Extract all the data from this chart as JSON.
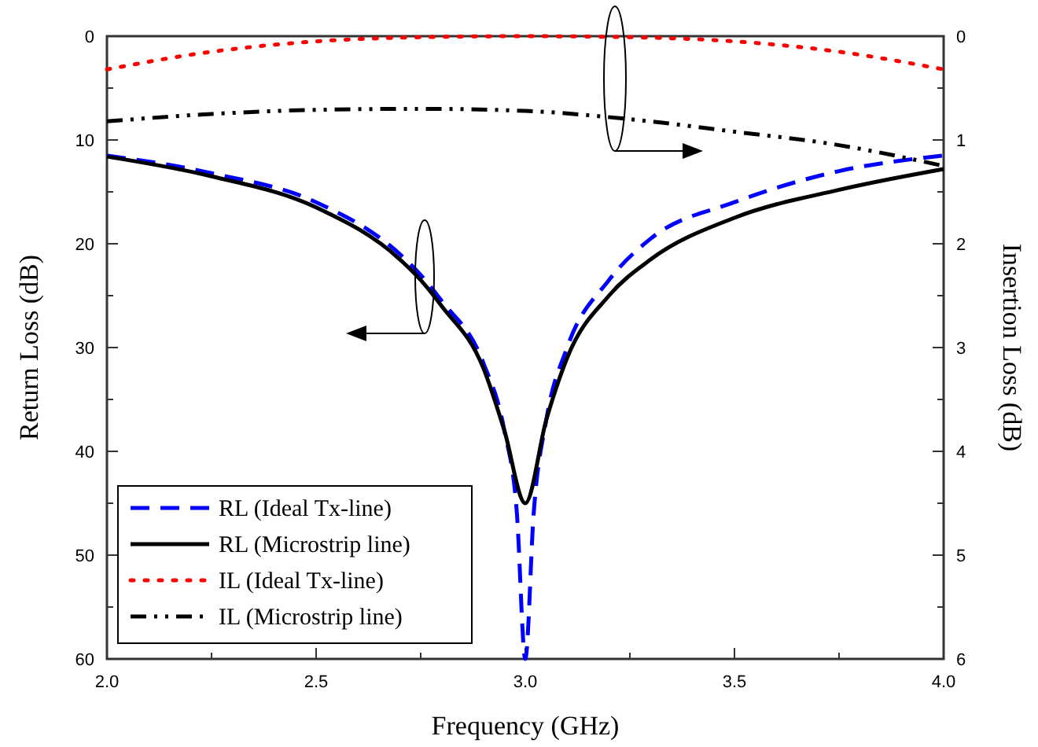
{
  "chart_data": {
    "type": "line",
    "xlabel": "Frequency (GHz)",
    "ylabel": "Return Loss (dB)",
    "y2label": "Insertion Loss (dB)",
    "xlim": [
      2.0,
      4.0
    ],
    "xticks": [
      {
        "value": 2.0,
        "label": "2.0"
      },
      {
        "value": 2.25,
        "label": null
      },
      {
        "value": 2.5,
        "label": "2.5"
      },
      {
        "value": 2.75,
        "label": null
      },
      {
        "value": 3.0,
        "label": "3.0"
      },
      {
        "value": 3.25,
        "label": null
      },
      {
        "value": 3.5,
        "label": "3.5"
      },
      {
        "value": 3.75,
        "label": null
      },
      {
        "value": 4.0,
        "label": "4.0"
      }
    ],
    "ylim": [
      60,
      0
    ],
    "yticks": [
      0,
      {
        "value": 5,
        "label": null
      },
      10,
      {
        "value": 15,
        "label": null
      },
      20,
      {
        "value": 25,
        "label": null
      },
      30,
      {
        "value": 35,
        "label": null
      },
      40,
      {
        "value": 45,
        "label": null
      },
      50,
      {
        "value": 55,
        "label": null
      },
      60
    ],
    "y2lim": [
      6,
      0
    ],
    "y2ticks": [
      0,
      {
        "value": 0.5,
        "label": null
      },
      1,
      {
        "value": 1.5,
        "label": null
      },
      2,
      {
        "value": 2.5,
        "label": null
      },
      3,
      {
        "value": 3.5,
        "label": null
      },
      4,
      {
        "value": 4.5,
        "label": null
      },
      5,
      {
        "value": 5.5,
        "label": null
      },
      6
    ],
    "legend": "bottom left",
    "grid": false,
    "series": [
      {
        "name": "RL (Ideal Tx-line)",
        "color": "#0000ff",
        "line_style": "dashed",
        "x": [
          2.0,
          2.25,
          2.5,
          2.7,
          2.75,
          2.8,
          2.9,
          2.95,
          2.98,
          3.0,
          3.02,
          3.05,
          3.1,
          3.2,
          3.3,
          3.5,
          3.75,
          4.0
        ],
        "values": [
          11.5,
          13.2,
          16,
          21,
          23,
          25.5,
          31.5,
          38,
          46,
          60,
          46,
          37,
          30,
          23.5,
          19.5,
          16,
          13,
          11.5
        ]
      },
      {
        "name": "RL (Microstrip line)",
        "color": "#000000",
        "line_style": "solid",
        "x": [
          2.0,
          2.25,
          2.5,
          2.7,
          2.75,
          2.8,
          2.9,
          2.95,
          3.0,
          3.05,
          3.1,
          3.2,
          3.3,
          3.5,
          3.75,
          4.0
        ],
        "values": [
          11.6,
          13.5,
          16.5,
          21.5,
          23.5,
          26,
          32,
          38,
          45,
          37,
          31,
          25,
          21.5,
          17.5,
          14.8,
          12.8
        ]
      },
      {
        "name": "IL (Ideal Tx-line)",
        "color": "#ff0000",
        "line_style": "dotted",
        "axis": "y2",
        "x": [
          2.0,
          2.25,
          2.5,
          2.75,
          3.0,
          3.25,
          3.5,
          3.75,
          4.0
        ],
        "values": [
          0.32,
          0.15,
          0.05,
          0.01,
          0,
          0.01,
          0.05,
          0.15,
          0.32
        ]
      },
      {
        "name": "IL (Microstrip line)",
        "color": "#000000",
        "line_style": "dashdot",
        "axis": "y2",
        "x": [
          2.0,
          2.25,
          2.5,
          2.75,
          3.0,
          3.25,
          3.5,
          3.75,
          4.0
        ],
        "values": [
          0.82,
          0.75,
          0.71,
          0.7,
          0.72,
          0.8,
          0.92,
          1.05,
          1.25
        ]
      }
    ]
  }
}
